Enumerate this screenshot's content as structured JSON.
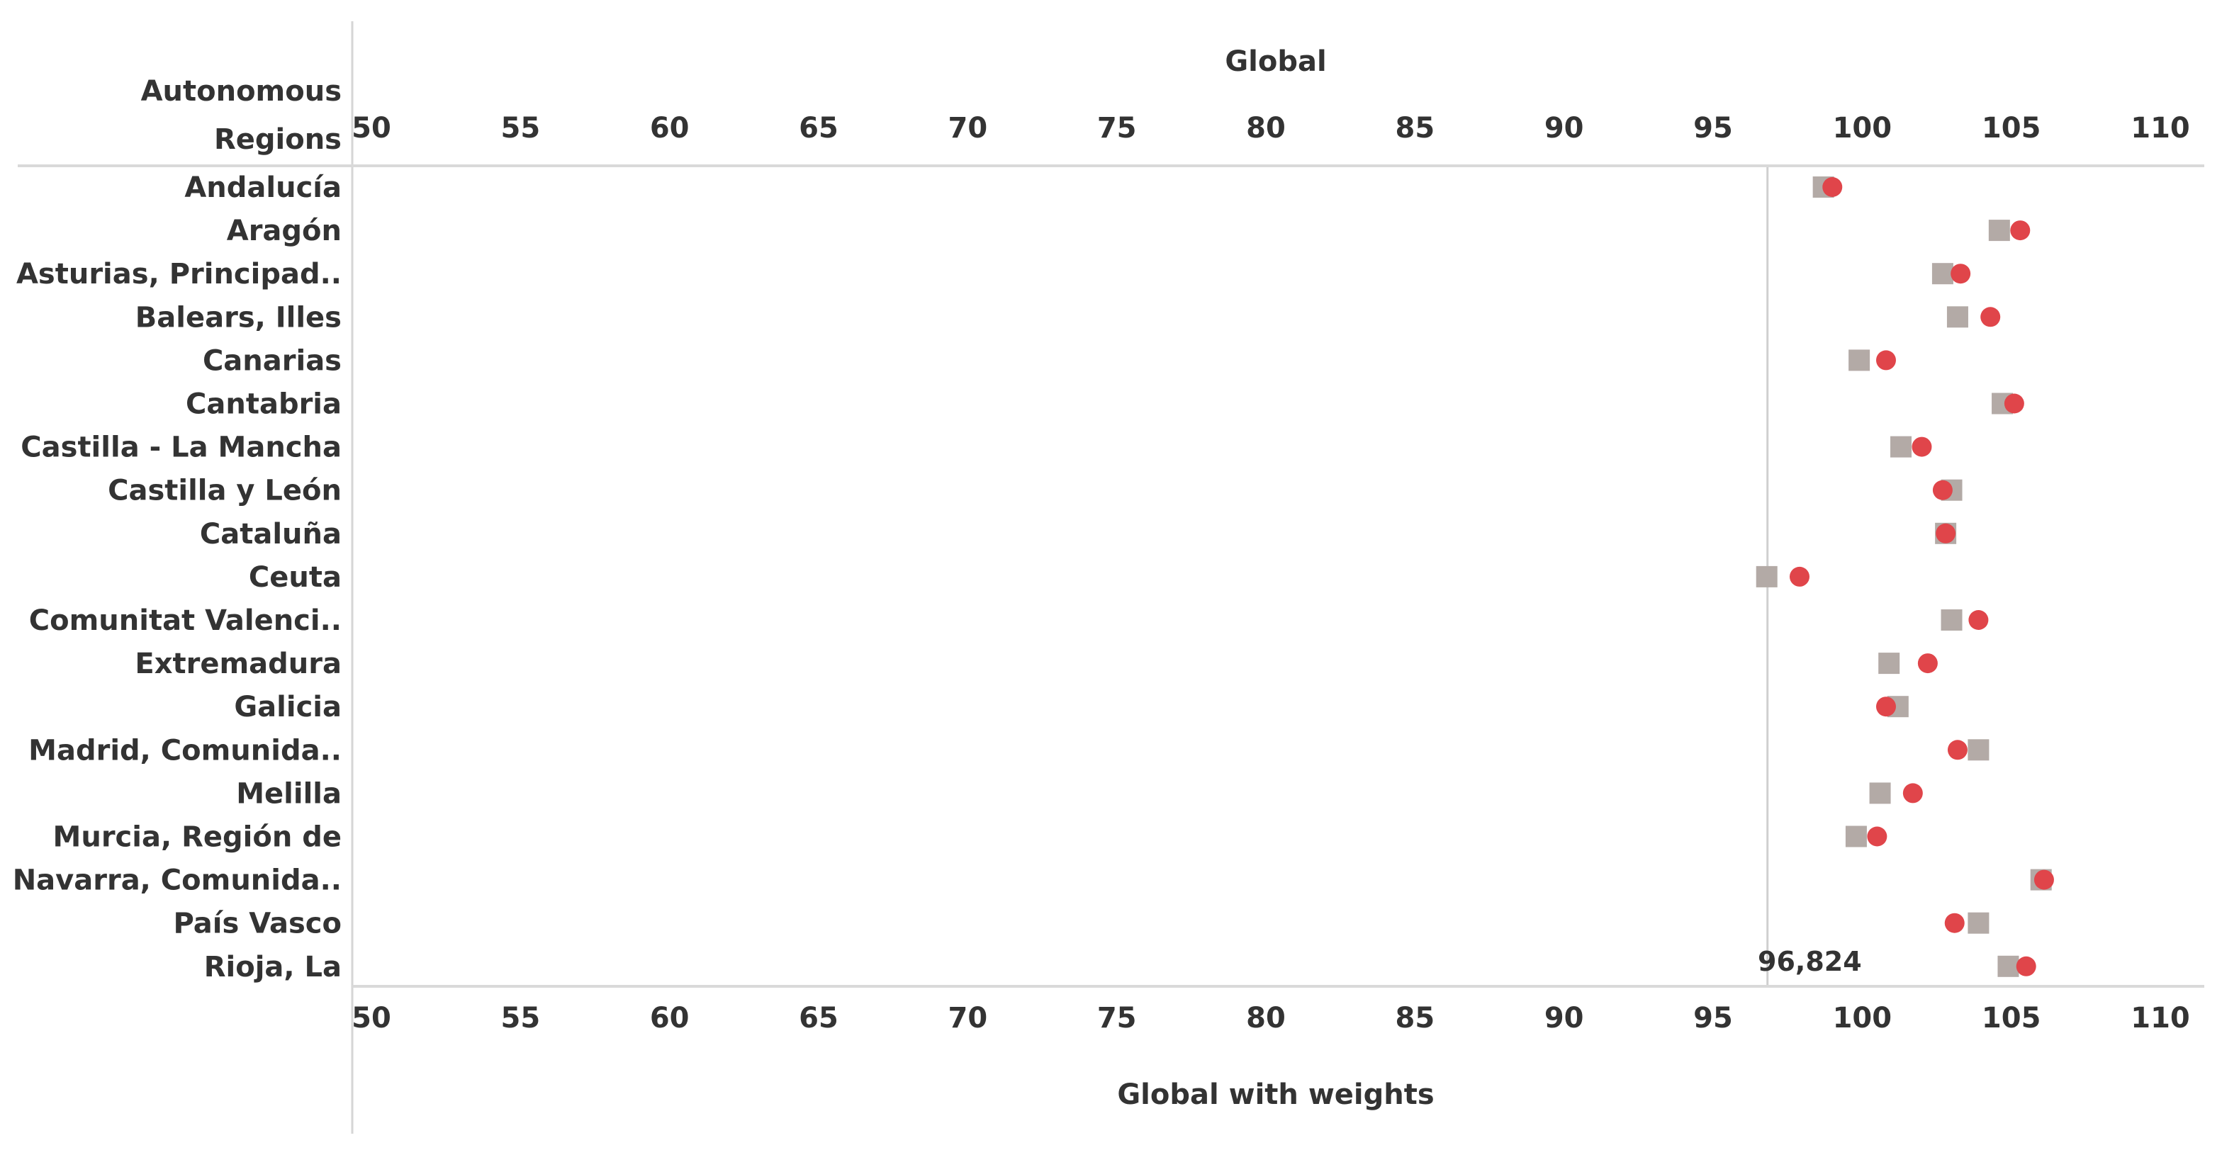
{
  "chart_data": {
    "type": "scatter",
    "top_axis_title": "Global",
    "bottom_axis_title": "Global with weights",
    "row_header_lines": [
      "Autonomous",
      "Regions"
    ],
    "xlim": [
      50,
      111
    ],
    "ticks": [
      50,
      55,
      60,
      65,
      70,
      75,
      80,
      85,
      90,
      95,
      100,
      105,
      110
    ],
    "reference_line": {
      "value": 96.824,
      "label": "96,824"
    },
    "categories": [
      "Andalucía",
      "Aragón",
      "Asturias, Principad..",
      "Balears, Illes",
      "Canarias",
      "Cantabria",
      "Castilla - La Mancha",
      "Castilla y León",
      "Cataluña",
      "Ceuta",
      "Comunitat Valenci..",
      "Extremadura",
      "Galicia",
      "Madrid, Comunida..",
      "Melilla",
      "Murcia, Región de",
      "Navarra, Comunida..",
      "País Vasco",
      "Rioja, La"
    ],
    "series": [
      {
        "marker": "square",
        "color": "#b3aaa6",
        "values": [
          98.7,
          104.6,
          102.7,
          103.2,
          99.9,
          104.7,
          101.3,
          103.0,
          102.8,
          96.8,
          103.0,
          100.9,
          101.2,
          103.9,
          100.6,
          99.8,
          106.0,
          103.9,
          104.9
        ]
      },
      {
        "marker": "circle",
        "color": "#e0454a",
        "values": [
          99.0,
          105.3,
          103.3,
          104.3,
          100.8,
          105.1,
          102.0,
          102.7,
          102.8,
          97.9,
          103.9,
          102.2,
          100.8,
          103.2,
          101.7,
          100.5,
          106.1,
          103.1,
          105.5
        ]
      }
    ]
  }
}
